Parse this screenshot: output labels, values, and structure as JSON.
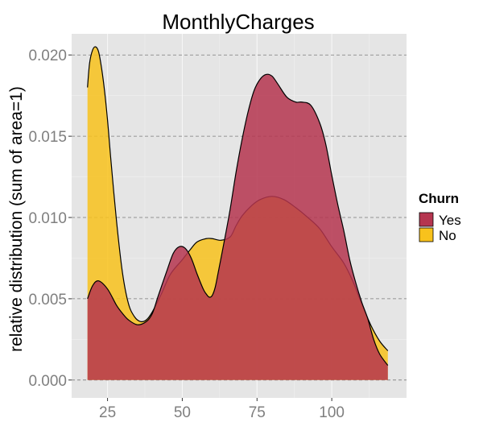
{
  "chart_data": {
    "type": "area",
    "subtype": "density",
    "title": "MonthlyCharges",
    "xlabel": "",
    "ylabel": "relative distribution (sum of area=1)",
    "xlim": [
      13,
      125
    ],
    "ylim": [
      -0.0011,
      0.0213
    ],
    "x_ticks": [
      25,
      50,
      75,
      100
    ],
    "y_ticks": [
      0.0,
      0.005,
      0.01,
      0.015,
      0.02
    ],
    "y_tick_labels": [
      "0.000",
      "0.005",
      "0.010",
      "0.015",
      "0.020"
    ],
    "grid": true,
    "legend": {
      "title": "Churn",
      "position": "right"
    },
    "series": [
      {
        "name": "Yes",
        "color": "#B5354F",
        "x": [
          18.3,
          20,
          22,
          25,
          28,
          30,
          32,
          35,
          38,
          40,
          42,
          45,
          47,
          49,
          51,
          53,
          55,
          57,
          58,
          59,
          60,
          61,
          62,
          64,
          66,
          68,
          70,
          72,
          74,
          76,
          78,
          80,
          82,
          85,
          88,
          90,
          93,
          96,
          98,
          100,
          102,
          104,
          106,
          108,
          110,
          112,
          114,
          116,
          118.75
        ],
        "values": [
          0.005,
          0.0058,
          0.0061,
          0.0056,
          0.0046,
          0.0041,
          0.0037,
          0.0034,
          0.0036,
          0.0041,
          0.0052,
          0.0068,
          0.0078,
          0.0082,
          0.0081,
          0.0075,
          0.0065,
          0.0056,
          0.0053,
          0.0051,
          0.0052,
          0.0057,
          0.0066,
          0.0085,
          0.0105,
          0.0128,
          0.0148,
          0.0165,
          0.0178,
          0.0185,
          0.0188,
          0.0187,
          0.0182,
          0.0174,
          0.0171,
          0.0171,
          0.0169,
          0.0158,
          0.0145,
          0.0126,
          0.0108,
          0.0092,
          0.0074,
          0.006,
          0.0048,
          0.0038,
          0.0025,
          0.0016,
          0.0009
        ]
      },
      {
        "name": "No",
        "color": "#F8C21C",
        "x": [
          18.3,
          19,
          20,
          21,
          22,
          23,
          24,
          25,
          26,
          28,
          30,
          32,
          34,
          36,
          38,
          40,
          43,
          46,
          50,
          53,
          55,
          58,
          60,
          63,
          66,
          68,
          70,
          73,
          76,
          80,
          84,
          88,
          92,
          96,
          100,
          104,
          107,
          110,
          113,
          116,
          118.75
        ],
        "values": [
          0.018,
          0.0195,
          0.0203,
          0.0205,
          0.0202,
          0.0192,
          0.0178,
          0.016,
          0.0138,
          0.0098,
          0.0066,
          0.0047,
          0.0039,
          0.0036,
          0.0037,
          0.0042,
          0.0053,
          0.0065,
          0.0074,
          0.0081,
          0.0085,
          0.0087,
          0.0087,
          0.0086,
          0.0088,
          0.0095,
          0.0101,
          0.0107,
          0.0111,
          0.0113,
          0.0111,
          0.0106,
          0.01,
          0.0093,
          0.0082,
          0.0072,
          0.0061,
          0.0047,
          0.0034,
          0.0024,
          0.0018
        ]
      }
    ]
  }
}
